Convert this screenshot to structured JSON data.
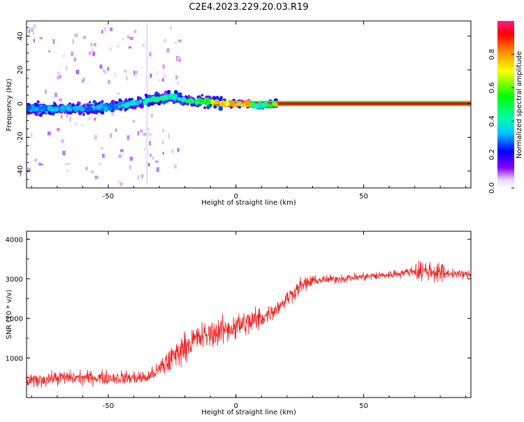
{
  "title": "C2E4.2023.229.20.03.R19",
  "colors": {
    "snr_line": "#ee2222",
    "frame": "#000000",
    "background": "#ffffff",
    "spectrogram_floor": "#ffffff"
  },
  "chart_data": [
    {
      "type": "heatmap",
      "name": "spectrogram",
      "xlabel": "Height of straight line (km)",
      "ylabel": "Frequency (Hz)",
      "xlim": [
        -82,
        92
      ],
      "ylim": [
        -50,
        49
      ],
      "xticks": [
        -50,
        0,
        50
      ],
      "yticks": [
        -40,
        -20,
        0,
        20,
        40
      ],
      "grid": false,
      "colorbar": {
        "label": "Normalized spectral amplitude",
        "range": [
          0,
          1
        ],
        "ticks": [
          0.0,
          0.2,
          0.4,
          0.6,
          0.8
        ],
        "tick_labels": [
          "0.0",
          "0.2",
          "0.4",
          "0.6",
          "0.8"
        ],
        "colormap": "rainbow (white → violet → blue → cyan → green → yellow → red → pink)"
      },
      "ridge": [
        {
          "x": -82,
          "freq": -3,
          "amplitude": 0.3
        },
        {
          "x": -70,
          "freq": -3,
          "amplitude": 0.35
        },
        {
          "x": -60,
          "freq": -3,
          "amplitude": 0.35
        },
        {
          "x": -50,
          "freq": -2,
          "amplitude": 0.35
        },
        {
          "x": -40,
          "freq": 0,
          "amplitude": 0.4
        },
        {
          "x": -30,
          "freq": 3,
          "amplitude": 0.45
        },
        {
          "x": -25,
          "freq": 4,
          "amplitude": 0.45
        },
        {
          "x": -20,
          "freq": 2,
          "amplitude": 0.5
        },
        {
          "x": -15,
          "freq": 1,
          "amplitude": 0.55
        },
        {
          "x": -10,
          "freq": 1,
          "amplitude": 0.7
        },
        {
          "x": -5,
          "freq": 0,
          "amplitude": 0.8
        },
        {
          "x": 0,
          "freq": 0,
          "amplitude": 0.85
        },
        {
          "x": 5,
          "freq": 0,
          "amplitude": 0.85
        },
        {
          "x": 8,
          "freq": -1,
          "amplitude": 0.4
        },
        {
          "x": 12,
          "freq": -1,
          "amplitude": 0.45
        },
        {
          "x": 16,
          "freq": 0,
          "amplitude": 0.85
        },
        {
          "x": 50,
          "freq": 0,
          "amplitude": 0.85
        },
        {
          "x": 92,
          "freq": 0,
          "amplitude": 0.85
        }
      ]
    },
    {
      "type": "line",
      "name": "snr",
      "xlabel": "Height of straight line (km)",
      "ylabel": "SNR (10 * v/v)",
      "xlim": [
        -82,
        92
      ],
      "ylim": [
        0,
        4200
      ],
      "xticks": [
        -50,
        0,
        50
      ],
      "yticks": [
        1000,
        2000,
        3000,
        4000
      ],
      "grid": false,
      "series": [
        {
          "x": [
            -82,
            -70,
            -60,
            -50,
            -40,
            -35,
            -30,
            -25,
            -20,
            -15,
            -10,
            -5,
            0,
            5,
            10,
            15,
            20,
            25,
            30,
            40,
            50,
            60,
            70,
            75,
            80,
            92
          ],
          "values": [
            400,
            500,
            500,
            500,
            500,
            500,
            700,
            1000,
            1300,
            1500,
            1600,
            1700,
            1800,
            1900,
            2000,
            2200,
            2500,
            2800,
            2950,
            3000,
            3050,
            3100,
            3200,
            3200,
            3150,
            3100
          ]
        }
      ]
    }
  ]
}
